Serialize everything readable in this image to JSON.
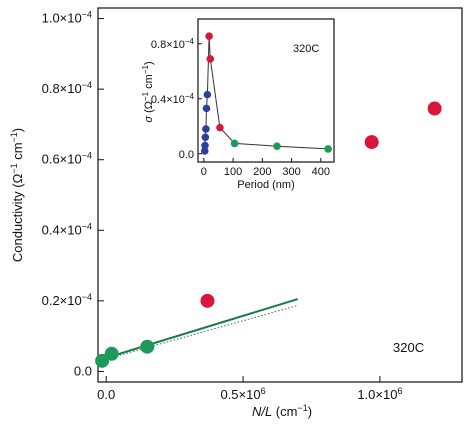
{
  "chart_data": [
    {
      "type": "scatter",
      "title": "",
      "xlabel_italic": "N/L",
      "xlabel_unit": " (cm",
      "xlabel_sup": "−1",
      "xlabel_close": ")",
      "ylabel_main": "Conductivity (Ω",
      "ylabel_sup1": "−1",
      "ylabel_mid": " cm",
      "ylabel_sup2": "−1",
      "ylabel_close": ")",
      "annotation": "320C",
      "xlim": [
        -30000,
        1300000
      ],
      "ylim": [
        -3e-06,
        0.000103
      ],
      "x_ticks": [
        {
          "value": 0,
          "label": "0.0"
        },
        {
          "value": 500000,
          "label": "0.5×10",
          "sup": "6"
        },
        {
          "value": 1000000,
          "label": "1.0×10",
          "sup": "6"
        }
      ],
      "y_ticks": [
        {
          "value": 0,
          "label": "0.0"
        },
        {
          "value": 2e-05,
          "label": "0.2×10",
          "sup": "−4"
        },
        {
          "value": 4e-05,
          "label": "0.4×10",
          "sup": "−4"
        },
        {
          "value": 6e-05,
          "label": "0.6×10",
          "sup": "−4"
        },
        {
          "value": 8e-05,
          "label": "0.8×10",
          "sup": "−4"
        },
        {
          "value": 0.0001,
          "label": "1.0×10",
          "sup": "−4"
        }
      ],
      "series": [
        {
          "color": "#1d9a5a",
          "points": [
            {
              "x": -15000,
              "y": 3e-06
            },
            {
              "x": 20000,
              "y": 5e-06
            },
            {
              "x": 150000,
              "y": 7e-06
            }
          ]
        },
        {
          "color": "#d8163a",
          "points": [
            {
              "x": 370000,
              "y": 2e-05
            },
            {
              "x": 970000,
              "y": 6.5e-05
            },
            {
              "x": 1200000,
              "y": 7.45e-05
            }
          ]
        }
      ],
      "fit_line": {
        "color": "#1a7a46",
        "x": [
          -15000,
          700000
        ],
        "y": [
          3.5e-06,
          2.05e-05
        ]
      },
      "fit_line_dotted": {
        "color": "#1a7a46",
        "x": [
          0,
          700000
        ],
        "y": [
          3.5e-06,
          1.87e-05
        ]
      }
    },
    {
      "type": "line",
      "title": "",
      "xlabel": "Period (nm)",
      "ylabel_italic": "σ",
      "ylabel_open": " (Ω",
      "ylabel_sup1": "−1",
      "ylabel_mid": " cm",
      "ylabel_sup2": "−1",
      "ylabel_close": ")",
      "annotation": "320C",
      "xlim": [
        -20,
        445
      ],
      "ylim": [
        -6e-06,
        9.8e-05
      ],
      "x_ticks": [
        {
          "value": 0,
          "label": "0"
        },
        {
          "value": 100,
          "label": "100"
        },
        {
          "value": 200,
          "label": "200"
        },
        {
          "value": 300,
          "label": "300"
        },
        {
          "value": 400,
          "label": "400"
        }
      ],
      "y_ticks": [
        {
          "value": 0,
          "label": "0.0"
        },
        {
          "value": 4e-05,
          "label": "0.4×10",
          "sup": "−4"
        },
        {
          "value": 8e-05,
          "label": "0.8×10",
          "sup": "−4"
        }
      ],
      "line_color": "#333333",
      "points": [
        {
          "x": 3,
          "y": 2e-06,
          "color": "#2b3f9c"
        },
        {
          "x": 4,
          "y": 6e-06,
          "color": "#2b3f9c"
        },
        {
          "x": 5,
          "y": 1.2e-05,
          "color": "#2b3f9c"
        },
        {
          "x": 7,
          "y": 1.8e-05,
          "color": "#2b3f9c"
        },
        {
          "x": 9,
          "y": 3.3e-05,
          "color": "#2b3f9c"
        },
        {
          "x": 12,
          "y": 4.3e-05,
          "color": "#2b3f9c"
        },
        {
          "x": 18,
          "y": 8.55e-05,
          "color": "#d8163a"
        },
        {
          "x": 22,
          "y": 6.9e-05,
          "color": "#d8163a"
        },
        {
          "x": 55,
          "y": 1.9e-05,
          "color": "#d8163a"
        },
        {
          "x": 105,
          "y": 7.5e-06,
          "color": "#1d9a5a"
        },
        {
          "x": 250,
          "y": 5.5e-06,
          "color": "#1d9a5a"
        },
        {
          "x": 425,
          "y": 3.5e-06,
          "color": "#1d9a5a"
        }
      ]
    }
  ]
}
